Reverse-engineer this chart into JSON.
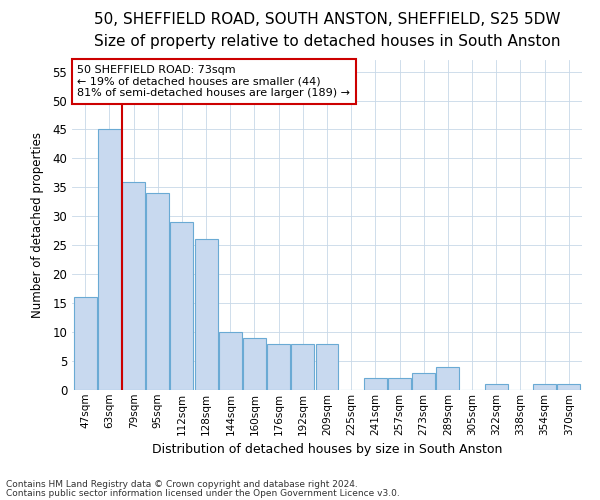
{
  "title_line1": "50, SHEFFIELD ROAD, SOUTH ANSTON, SHEFFIELD, S25 5DW",
  "title_line2": "Size of property relative to detached houses in South Anston",
  "xlabel": "Distribution of detached houses by size in South Anston",
  "ylabel": "Number of detached properties",
  "footnote_line1": "Contains HM Land Registry data © Crown copyright and database right 2024.",
  "footnote_line2": "Contains public sector information licensed under the Open Government Licence v3.0.",
  "annotation_title": "50 SHEFFIELD ROAD: 73sqm",
  "annotation_line1": "← 19% of detached houses are smaller (44)",
  "annotation_line2": "81% of semi-detached houses are larger (189) →",
  "bar_labels": [
    "47sqm",
    "63sqm",
    "79sqm",
    "95sqm",
    "112sqm",
    "128sqm",
    "144sqm",
    "160sqm",
    "176sqm",
    "192sqm",
    "209sqm",
    "225sqm",
    "241sqm",
    "257sqm",
    "273sqm",
    "289sqm",
    "305sqm",
    "322sqm",
    "338sqm",
    "354sqm",
    "370sqm"
  ],
  "bar_values": [
    16,
    45,
    36,
    34,
    29,
    26,
    10,
    9,
    8,
    8,
    8,
    0,
    2,
    2,
    3,
    4,
    0,
    1,
    0,
    1,
    1
  ],
  "bar_color": "#c8d9ef",
  "bar_edge_color": "#6aaad4",
  "red_line_x": 1.5,
  "ylim": [
    0,
    57
  ],
  "yticks": [
    0,
    5,
    10,
    15,
    20,
    25,
    30,
    35,
    40,
    45,
    50,
    55
  ],
  "bg_color": "#ffffff",
  "grid_color": "#c8d8e8",
  "annotation_box_color": "#ffffff",
  "annotation_box_edge": "#cc0000",
  "red_line_color": "#cc0000",
  "title_fontsize": 11,
  "subtitle_fontsize": 9.5
}
